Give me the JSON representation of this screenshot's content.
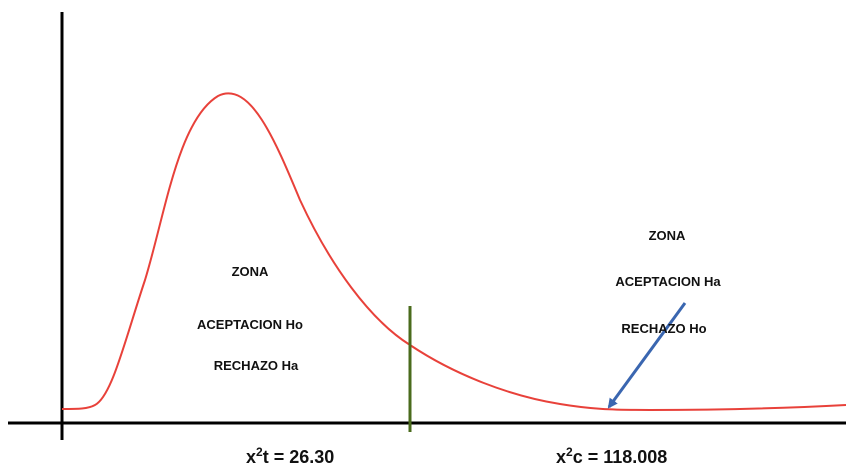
{
  "left_zone": {
    "line1": "ZONA",
    "line2": "ACEPTACION Ho",
    "line3": "RECHAZO Ha"
  },
  "right_zone": {
    "line1": "ZONA",
    "line2": "ACEPTACION Ha",
    "line3": "RECHAZO Ho"
  },
  "labels": {
    "critical_prefix": "x",
    "critical_sup": "2",
    "critical_rest": "t = 26.30",
    "computed_prefix": "x",
    "computed_sup": "2",
    "computed_rest": "c = 118.008"
  },
  "colors": {
    "curve": "#e8413a",
    "critical_line": "#4a6b1c",
    "arrow": "#3a66b0",
    "axis": "#000000"
  }
}
